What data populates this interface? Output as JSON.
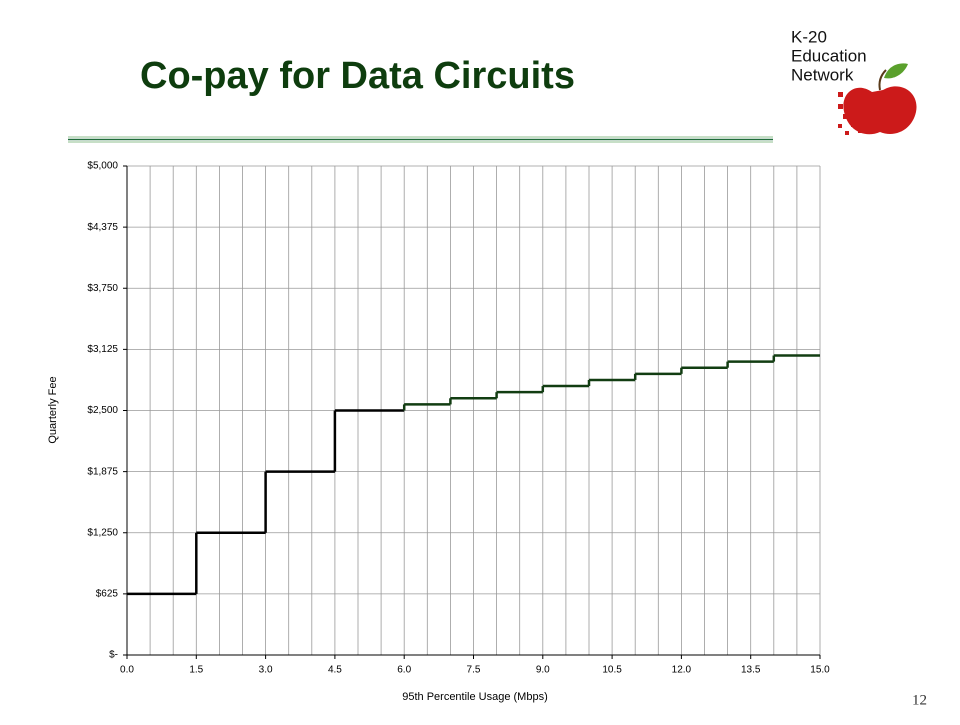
{
  "slide": {
    "title": "Co-pay for Data Circuits",
    "page_number": "12",
    "logo": {
      "lines": [
        "K-20",
        "Education",
        "Network"
      ]
    }
  },
  "chart_data": {
    "type": "step",
    "xlabel": "95th Percentile Usage (Mbps)",
    "ylabel": "Quarterly Fee",
    "series": [
      {
        "color": "#000000",
        "bins": [
          0,
          1.5,
          3,
          4.5,
          6
        ],
        "values": [
          625,
          1250,
          1875,
          2500
        ]
      },
      {
        "color": "#123d12",
        "bins": [
          6,
          7,
          8,
          9,
          10,
          11,
          12,
          13,
          14,
          15
        ],
        "values": [
          2562.5,
          2625,
          2687.5,
          2750,
          2812.5,
          2875,
          2937.5,
          3000,
          3062.5
        ]
      }
    ],
    "xlim": [
      0,
      15
    ],
    "ylim": [
      0,
      5000
    ],
    "xticks": [
      {
        "value": 0,
        "label": "0.0"
      },
      1.5,
      {
        "value": 3,
        "label": "3.0"
      },
      4.5,
      {
        "value": 6,
        "label": "6.0"
      },
      7.5,
      {
        "value": 9,
        "label": "9.0"
      },
      10.5,
      {
        "value": 12,
        "label": "12.0"
      },
      13.5,
      {
        "value": 15,
        "label": "15.0"
      }
    ],
    "x_gridlines": [
      0,
      0.5,
      1,
      1.5,
      2,
      2.5,
      3,
      3.5,
      4,
      4.5,
      5,
      5.5,
      6,
      6.5,
      7,
      7.5,
      8,
      8.5,
      9,
      9.5,
      10,
      10.5,
      11,
      11.5,
      12,
      12.5,
      13,
      13.5,
      14,
      14.5,
      15
    ],
    "yticks": [
      {
        "value": 0,
        "label": "$-"
      },
      {
        "value": 625,
        "label": "$625"
      },
      {
        "value": 1250,
        "label": "$1,250"
      },
      {
        "value": 1875,
        "label": "$1,875"
      },
      {
        "value": 2500,
        "label": "$2,500"
      },
      {
        "value": 3125,
        "label": "$3,125"
      },
      {
        "value": 3750,
        "label": "$3,750"
      },
      {
        "value": 4375,
        "label": "$4,375"
      },
      {
        "value": 5000,
        "label": "$5,000"
      }
    ],
    "grid": true
  }
}
